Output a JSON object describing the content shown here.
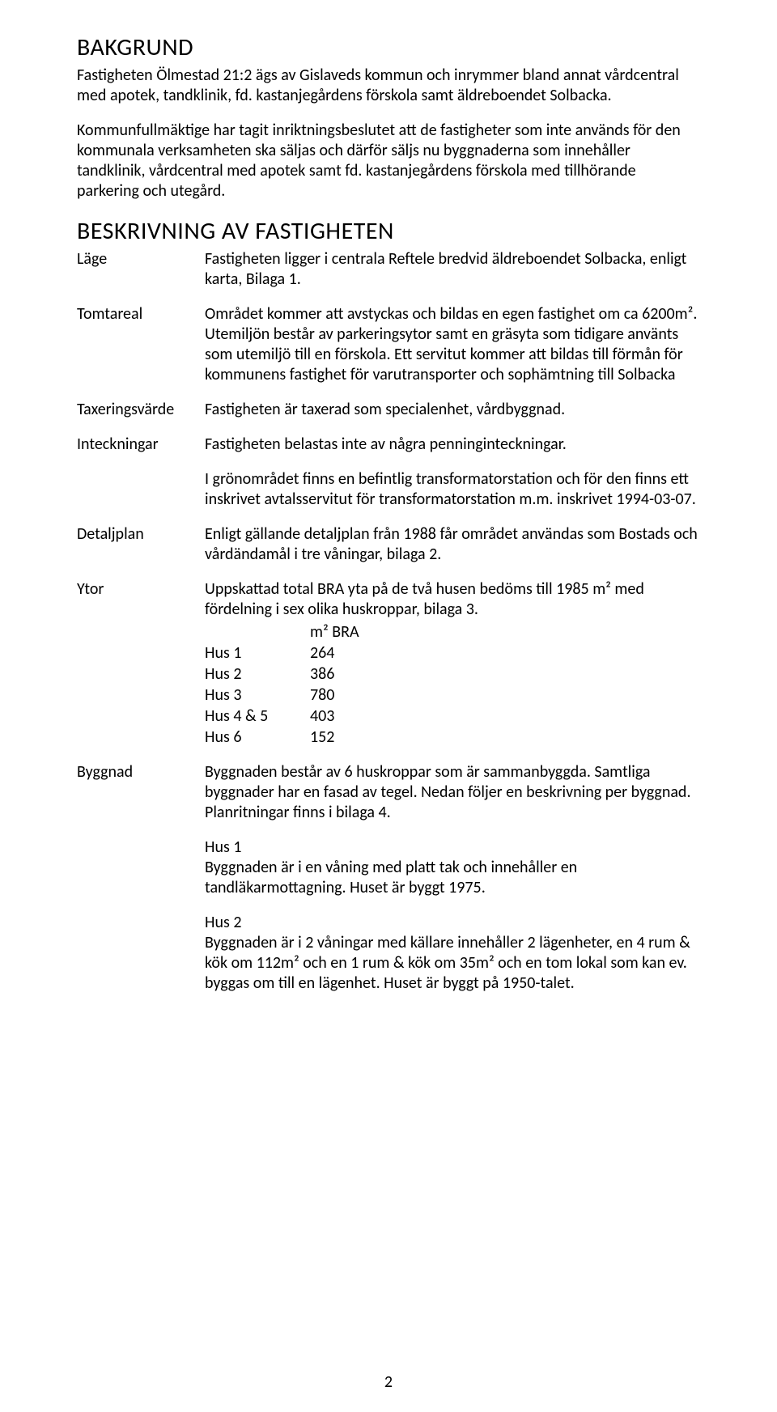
{
  "bakgrund": {
    "heading": "BAKGRUND",
    "para1": "Fastigheten Ölmestad 21:2 ägs av Gislaveds kommun och inrymmer bland annat vårdcentral med apotek, tandklinik, fd. kastanjegårdens förskola samt äldreboendet Solbacka.",
    "para2": "Kommunfullmäktige har tagit inriktningsbeslutet att de fastigheter som inte används för den kommunala verksamheten ska säljas och därför säljs nu byggnaderna som innehåller tandklinik, vårdcentral med apotek samt fd. kastanjegårdens förskola med tillhörande parkering och utegård."
  },
  "beskrivning": {
    "heading": "BESKRIVNING AV FASTIGHETEN",
    "lage": {
      "label": "Läge",
      "text": "Fastigheten ligger i centrala Reftele bredvid äldreboendet Solbacka, enligt karta, Bilaga 1."
    },
    "tomtareal": {
      "label": "Tomtareal",
      "text": "Området kommer att avstyckas och bildas en egen fastighet om ca 6200m². Utemiljön består av parkeringsytor samt en gräsyta som tidigare använts som utemiljö till en förskola. Ett servitut kommer att bildas till förmån för kommunens fastighet för varutransporter och sophämtning till Solbacka"
    },
    "taxering": {
      "label": "Taxeringsvärde",
      "text": "Fastigheten är taxerad som specialenhet, vårdbyggnad."
    },
    "inteckningar": {
      "label": "Inteckningar",
      "text1": "Fastigheten belastas inte av några penninginteckningar.",
      "text2": "I grönområdet finns en befintlig transformatorstation och för den finns ett inskrivet avtalsservitut för transformatorstation m.m. inskrivet 1994-03-07."
    },
    "detaljplan": {
      "label": "Detaljplan",
      "text": "Enligt gällande detaljplan från 1988 får området användas som Bostads och vårdändamål i tre våningar, bilaga 2."
    },
    "ytor": {
      "label": "Ytor",
      "text": "Uppskattad total BRA yta på de två husen bedöms till 1985 m² med fördelning i sex olika huskroppar, bilaga 3.",
      "table_header": "m² BRA",
      "rows": [
        {
          "name": "Hus 1",
          "val": "264"
        },
        {
          "name": "Hus 2",
          "val": "386"
        },
        {
          "name": "Hus 3",
          "val": "780"
        },
        {
          "name": "Hus 4 & 5",
          "val": "403"
        },
        {
          "name": "Hus 6",
          "val": "152"
        }
      ]
    },
    "byggnad": {
      "label": "Byggnad",
      "text1": "Byggnaden består av 6 huskroppar som är sammanbyggda. Samtliga byggnader har en fasad av tegel. Nedan följer en beskrivning per byggnad. Planritningar finns i bilaga 4.",
      "hus1_title": "Hus 1",
      "hus1_text": "Byggnaden är i en våning med platt tak och innehåller en tandläkarmottagning. Huset är byggt 1975.",
      "hus2_title": "Hus 2",
      "hus2_text": "Byggnaden är i 2 våningar med källare innehåller 2 lägenheter, en 4 rum & kök om 112m² och en 1 rum & kök om 35m² och en tom lokal som kan ev. byggas om till en lägenhet. Huset är byggt på 1950-talet."
    }
  },
  "page_number": "2"
}
